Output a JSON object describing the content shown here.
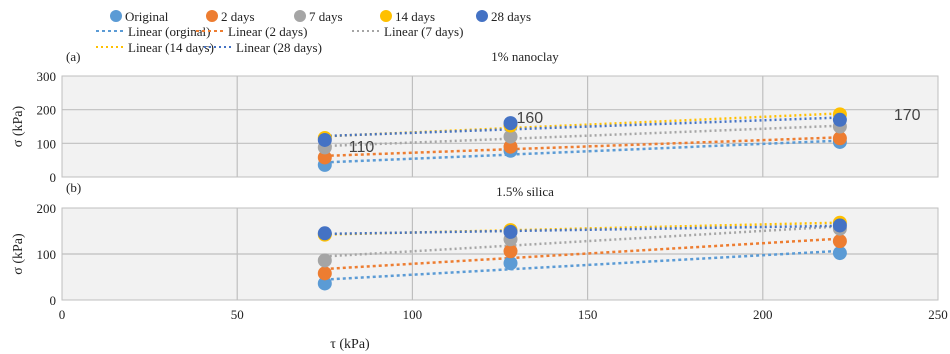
{
  "colors": {
    "original": "#5b9bd5",
    "d2": "#ed7d31",
    "d7": "#a5a5a5",
    "d14": "#ffc000",
    "d28": "#4472c4",
    "panel_bg": "#f2f2f2",
    "grid": "#bfbfbf"
  },
  "legend": {
    "markers": [
      "Original",
      "2 days",
      "7 days",
      "14 days",
      "28 days"
    ],
    "lines": [
      "Linear (orginal)",
      "Linear (2 days)",
      "Linear (7 days)",
      "Linear (14 days)",
      "Linear (28 days)"
    ]
  },
  "chart_data": [
    {
      "type": "scatter",
      "panel_label": "(a)",
      "title": "1% nanoclay",
      "ylabel": "σ (kPa)",
      "ylim": [
        0,
        300
      ],
      "yticks": [
        0,
        100,
        200,
        300
      ],
      "xlim": [
        0,
        250
      ],
      "x": [
        75,
        128,
        222
      ],
      "series": [
        {
          "name": "Original",
          "values": [
            36,
            78,
            104
          ]
        },
        {
          "name": "2 days",
          "values": [
            58,
            90,
            115
          ]
        },
        {
          "name": "7 days",
          "values": [
            88,
            120,
            150
          ]
        },
        {
          "name": "14 days",
          "values": [
            116,
            153,
            186
          ]
        },
        {
          "name": "28 days",
          "values": [
            110,
            160,
            170
          ]
        }
      ],
      "annotations": [
        "110",
        "160",
        "170"
      ],
      "trendline": "linear",
      "grid": true
    },
    {
      "type": "scatter",
      "panel_label": "(b)",
      "title": "1.5% silica",
      "ylabel": "σ (kPa)",
      "xlabel": "τ (kPa)",
      "ylim": [
        0,
        200
      ],
      "yticks": [
        0,
        100,
        200
      ],
      "xlim": [
        0,
        250
      ],
      "xticks": [
        0,
        50,
        100,
        150,
        200,
        250
      ],
      "x": [
        75,
        128,
        222
      ],
      "series": [
        {
          "name": "Original",
          "values": [
            36,
            80,
            102
          ]
        },
        {
          "name": "2 days",
          "values": [
            58,
            106,
            128
          ]
        },
        {
          "name": "7 days",
          "values": [
            86,
            132,
            155
          ]
        },
        {
          "name": "14 days",
          "values": [
            142,
            152,
            168
          ]
        },
        {
          "name": "28 days",
          "values": [
            145,
            148,
            162
          ]
        }
      ],
      "trendline": "linear",
      "grid": true
    }
  ]
}
